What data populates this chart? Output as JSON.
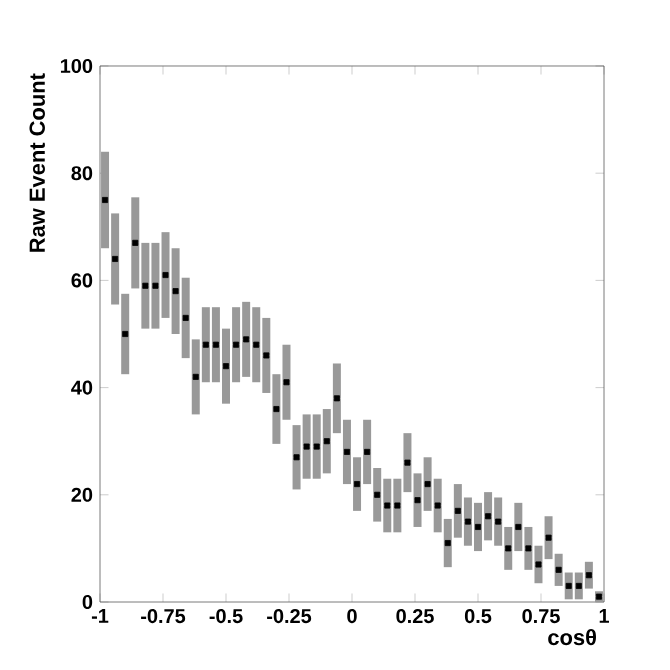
{
  "chart_data": {
    "type": "scatter",
    "xlabel": "cosθ",
    "ylabel": "Raw Event Count",
    "x": [
      -0.98,
      -0.94,
      -0.9,
      -0.86,
      -0.82,
      -0.78,
      -0.74,
      -0.7,
      -0.66,
      -0.62,
      -0.58,
      -0.54,
      -0.5,
      -0.46,
      -0.42,
      -0.38,
      -0.34,
      -0.3,
      -0.26,
      -0.22,
      -0.18,
      -0.14,
      -0.1,
      -0.06,
      -0.02,
      0.02,
      0.06,
      0.1,
      0.14,
      0.18,
      0.22,
      0.26,
      0.3,
      0.34,
      0.38,
      0.42,
      0.46,
      0.5,
      0.54,
      0.58,
      0.62,
      0.66,
      0.7,
      0.74,
      0.78,
      0.82,
      0.86,
      0.9,
      0.94,
      0.98
    ],
    "series": [
      {
        "color": "#000000",
        "values": [
          75,
          64,
          50,
          67,
          59,
          59,
          61,
          58,
          53,
          42,
          48,
          48,
          44,
          48,
          49,
          48,
          46,
          36,
          41,
          27,
          29,
          29,
          30,
          38,
          28,
          22,
          28,
          20,
          18,
          18,
          26,
          19,
          22,
          18,
          11,
          17,
          15,
          14,
          16,
          15,
          10,
          14,
          10,
          7,
          12,
          6,
          3,
          3,
          5,
          1
        ],
        "errors": [
          9,
          8.5,
          7.5,
          8.5,
          8,
          8,
          8,
          8,
          7.5,
          7,
          7,
          7,
          7,
          7,
          7,
          7,
          7,
          6.5,
          7,
          6,
          6,
          6,
          6,
          6.5,
          6,
          5,
          6,
          5,
          5,
          5,
          5.5,
          5,
          5,
          5,
          4.5,
          5,
          4.5,
          4.5,
          4.5,
          4.5,
          4,
          4.5,
          4,
          3.5,
          4,
          3,
          2.5,
          2.5,
          2.5,
          1
        ]
      }
    ],
    "xlim": [
      -1,
      1
    ],
    "ylim": [
      0,
      100
    ],
    "xticks": [
      -1,
      -0.75,
      -0.5,
      -0.25,
      0,
      0.25,
      0.5,
      0.75,
      1
    ],
    "yticks": [
      0,
      20,
      40,
      60,
      80,
      100
    ],
    "marker": "square",
    "grid": false
  }
}
